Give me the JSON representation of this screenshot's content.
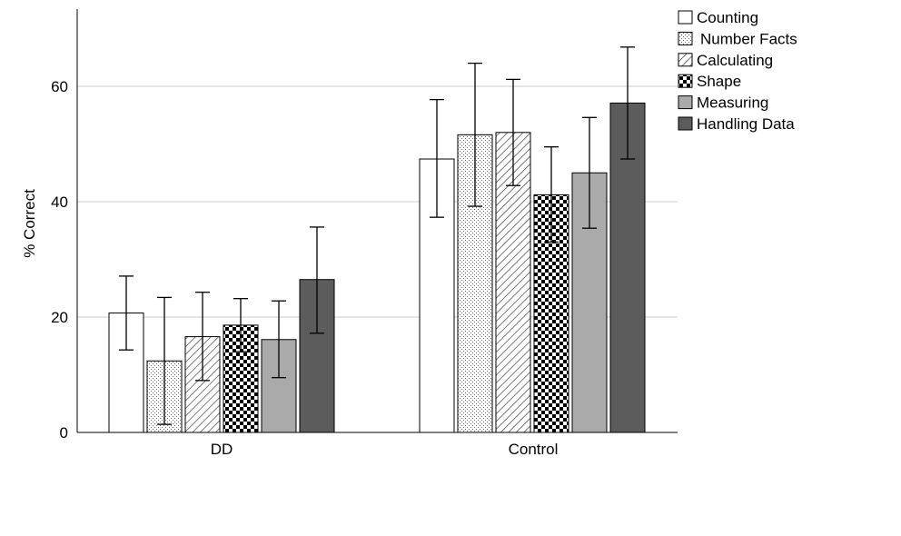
{
  "chart_data": {
    "type": "bar",
    "title": "",
    "xlabel": "",
    "ylabel": "% Correct",
    "ylim": [
      0,
      74
    ],
    "yticks": [
      0,
      20,
      40,
      60
    ],
    "grid": true,
    "legend_position": "top-right",
    "categories": [
      "DD",
      "Control"
    ],
    "series": [
      {
        "name": "Counting",
        "pattern": "solid-white",
        "color": "#ffffff",
        "values": [
          20.7,
          47.4
        ],
        "error_low": [
          14.3,
          37.3
        ],
        "error_high": [
          27.1,
          57.7
        ]
      },
      {
        "name": "Number Facts",
        "pattern": "fine-dots",
        "color": "#ffffff",
        "values": [
          12.4,
          51.6
        ],
        "error_low": [
          1.4,
          39.2
        ],
        "error_high": [
          23.4,
          64.0
        ]
      },
      {
        "name": "Calculating",
        "pattern": "diagonal-lines",
        "color": "#ffffff",
        "values": [
          16.6,
          52.0
        ],
        "error_low": [
          9.0,
          42.8
        ],
        "error_high": [
          24.3,
          61.2
        ]
      },
      {
        "name": "Shape",
        "pattern": "checkerboard",
        "color": "#000000",
        "values": [
          18.6,
          41.2
        ],
        "error_low": [
          14.0,
          33.0
        ],
        "error_high": [
          23.2,
          49.5
        ]
      },
      {
        "name": "Measuring",
        "pattern": "solid-light-gray",
        "color": "#aaaaaa",
        "values": [
          16.1,
          45.0
        ],
        "error_low": [
          9.5,
          35.4
        ],
        "error_high": [
          22.8,
          54.6
        ]
      },
      {
        "name": "Handling Data",
        "pattern": "solid-dark-gray",
        "color": "#5c5c5c",
        "values": [
          26.5,
          57.1
        ],
        "error_low": [
          17.2,
          47.4
        ],
        "error_high": [
          35.6,
          66.8
        ]
      }
    ]
  }
}
